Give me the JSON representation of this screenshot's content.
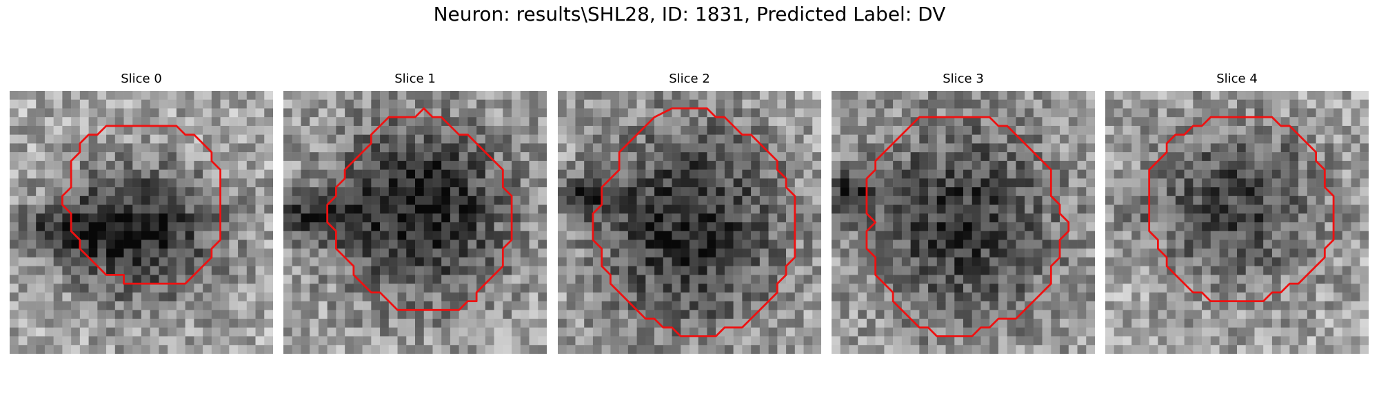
{
  "figure": {
    "title": "Neuron: results\\SHL28, ID: 1831, Predicted Label: DV"
  },
  "slices": [
    {
      "title": "Slice 0",
      "grid_size": 30,
      "seed": 11,
      "blob": {
        "cx": 14.5,
        "cy": 16.2,
        "rx": 9.8,
        "ry": 8.0,
        "darkness": 0.55
      },
      "shadow": {
        "cx": 5.0,
        "cy": 16.0,
        "rx": 5.0,
        "ry": 2.5,
        "darkness": 0.35
      },
      "contour": [
        [
          14,
          4
        ],
        [
          19,
          4
        ],
        [
          20,
          5
        ],
        [
          21,
          5
        ],
        [
          22,
          6
        ],
        [
          23,
          7
        ],
        [
          23,
          8
        ],
        [
          24,
          9
        ],
        [
          24,
          17
        ],
        [
          23,
          18
        ],
        [
          23,
          19
        ],
        [
          22,
          20
        ],
        [
          21,
          21
        ],
        [
          20,
          22
        ],
        [
          13,
          22
        ],
        [
          13,
          21
        ],
        [
          11,
          21
        ],
        [
          10,
          20
        ],
        [
          9,
          19
        ],
        [
          8,
          18
        ],
        [
          8,
          17
        ],
        [
          7,
          16
        ],
        [
          7,
          14
        ],
        [
          6,
          13
        ],
        [
          6,
          12
        ],
        [
          7,
          11
        ],
        [
          7,
          8
        ],
        [
          8,
          7
        ],
        [
          8,
          6
        ],
        [
          9,
          5
        ],
        [
          10,
          5
        ],
        [
          11,
          4
        ]
      ]
    },
    {
      "title": "Slice 1",
      "grid_size": 30,
      "seed": 23,
      "blob": {
        "cx": 15.5,
        "cy": 13.5,
        "rx": 11.2,
        "ry": 11.0,
        "darkness": 0.55
      },
      "shadow": {
        "cx": 3.0,
        "cy": 14.5,
        "rx": 4.0,
        "ry": 2.5,
        "darkness": 0.4
      },
      "contour": [
        [
          12,
          3
        ],
        [
          15,
          3
        ],
        [
          16,
          2
        ],
        [
          17,
          3
        ],
        [
          18,
          3
        ],
        [
          19,
          4
        ],
        [
          20,
          5
        ],
        [
          21,
          5
        ],
        [
          22,
          6
        ],
        [
          23,
          7
        ],
        [
          24,
          8
        ],
        [
          25,
          9
        ],
        [
          25,
          11
        ],
        [
          26,
          12
        ],
        [
          26,
          17
        ],
        [
          25,
          18
        ],
        [
          25,
          20
        ],
        [
          24,
          21
        ],
        [
          23,
          22
        ],
        [
          22,
          23
        ],
        [
          22,
          24
        ],
        [
          21,
          24
        ],
        [
          20,
          25
        ],
        [
          13,
          25
        ],
        [
          12,
          24
        ],
        [
          11,
          23
        ],
        [
          10,
          23
        ],
        [
          9,
          22
        ],
        [
          8,
          21
        ],
        [
          8,
          20
        ],
        [
          7,
          19
        ],
        [
          6,
          18
        ],
        [
          6,
          16
        ],
        [
          5,
          15
        ],
        [
          5,
          13
        ],
        [
          6,
          12
        ],
        [
          6,
          11
        ],
        [
          7,
          10
        ],
        [
          7,
          9
        ],
        [
          8,
          8
        ],
        [
          9,
          7
        ],
        [
          10,
          6
        ],
        [
          10,
          5
        ],
        [
          11,
          4
        ]
      ]
    },
    {
      "title": "Slice 2",
      "grid_size": 30,
      "seed": 37,
      "blob": {
        "cx": 15.0,
        "cy": 15.5,
        "rx": 11.5,
        "ry": 13.0,
        "darkness": 0.5
      },
      "shadow": {
        "cx": 3.5,
        "cy": 12.0,
        "rx": 3.5,
        "ry": 2.5,
        "darkness": 0.4
      },
      "contour": [
        [
          13,
          2
        ],
        [
          17,
          2
        ],
        [
          18,
          3
        ],
        [
          19,
          3
        ],
        [
          20,
          4
        ],
        [
          21,
          5
        ],
        [
          22,
          5
        ],
        [
          23,
          6
        ],
        [
          24,
          7
        ],
        [
          25,
          8
        ],
        [
          25,
          9
        ],
        [
          26,
          10
        ],
        [
          26,
          11
        ],
        [
          27,
          12
        ],
        [
          27,
          19
        ],
        [
          26,
          20
        ],
        [
          26,
          21
        ],
        [
          25,
          22
        ],
        [
          25,
          23
        ],
        [
          24,
          24
        ],
        [
          23,
          25
        ],
        [
          22,
          26
        ],
        [
          21,
          27
        ],
        [
          19,
          27
        ],
        [
          18,
          28
        ],
        [
          14,
          28
        ],
        [
          13,
          27
        ],
        [
          12,
          27
        ],
        [
          11,
          26
        ],
        [
          10,
          26
        ],
        [
          9,
          25
        ],
        [
          8,
          24
        ],
        [
          7,
          23
        ],
        [
          6,
          22
        ],
        [
          6,
          21
        ],
        [
          5,
          20
        ],
        [
          5,
          18
        ],
        [
          4,
          17
        ],
        [
          4,
          14
        ],
        [
          5,
          13
        ],
        [
          5,
          11
        ],
        [
          6,
          10
        ],
        [
          7,
          9
        ],
        [
          7,
          7
        ],
        [
          8,
          6
        ],
        [
          9,
          5
        ],
        [
          10,
          4
        ],
        [
          11,
          3
        ]
      ]
    },
    {
      "title": "Slice 3",
      "grid_size": 30,
      "seed": 53,
      "blob": {
        "cx": 15.0,
        "cy": 15.0,
        "rx": 12.0,
        "ry": 13.0,
        "darkness": 0.45
      },
      "shadow": {
        "cx": 2.0,
        "cy": 12.0,
        "rx": 3.0,
        "ry": 2.5,
        "darkness": 0.45
      },
      "contour": [
        [
          10,
          3
        ],
        [
          18,
          3
        ],
        [
          19,
          4
        ],
        [
          20,
          4
        ],
        [
          21,
          5
        ],
        [
          22,
          6
        ],
        [
          23,
          7
        ],
        [
          24,
          8
        ],
        [
          25,
          9
        ],
        [
          25,
          12
        ],
        [
          26,
          13
        ],
        [
          26,
          14
        ],
        [
          27,
          15
        ],
        [
          27,
          16
        ],
        [
          26,
          17
        ],
        [
          26,
          19
        ],
        [
          25,
          20
        ],
        [
          25,
          22
        ],
        [
          24,
          23
        ],
        [
          23,
          24
        ],
        [
          22,
          25
        ],
        [
          21,
          26
        ],
        [
          19,
          26
        ],
        [
          18,
          27
        ],
        [
          17,
          27
        ],
        [
          16,
          28
        ],
        [
          12,
          28
        ],
        [
          11,
          27
        ],
        [
          10,
          27
        ],
        [
          9,
          26
        ],
        [
          8,
          25
        ],
        [
          7,
          24
        ],
        [
          7,
          23
        ],
        [
          6,
          22
        ],
        [
          5,
          21
        ],
        [
          5,
          19
        ],
        [
          4,
          18
        ],
        [
          4,
          16
        ],
        [
          5,
          15
        ],
        [
          4,
          14
        ],
        [
          4,
          10
        ],
        [
          5,
          9
        ],
        [
          5,
          8
        ],
        [
          6,
          7
        ],
        [
          7,
          6
        ],
        [
          8,
          5
        ],
        [
          9,
          4
        ]
      ]
    },
    {
      "title": "Slice 4",
      "grid_size": 30,
      "seed": 71,
      "blob": {
        "cx": 15.0,
        "cy": 13.0,
        "rx": 10.5,
        "ry": 10.0,
        "darkness": 0.4
      },
      "shadow": {
        "cx": 4.0,
        "cy": 13.0,
        "rx": 2.5,
        "ry": 2.0,
        "darkness": 0.2
      },
      "contour": [
        [
          12,
          3
        ],
        [
          19,
          3
        ],
        [
          20,
          4
        ],
        [
          21,
          4
        ],
        [
          22,
          5
        ],
        [
          23,
          6
        ],
        [
          24,
          7
        ],
        [
          24,
          8
        ],
        [
          25,
          9
        ],
        [
          25,
          11
        ],
        [
          26,
          12
        ],
        [
          26,
          17
        ],
        [
          25,
          18
        ],
        [
          25,
          19
        ],
        [
          24,
          20
        ],
        [
          23,
          21
        ],
        [
          22,
          22
        ],
        [
          21,
          22
        ],
        [
          20,
          23
        ],
        [
          19,
          23
        ],
        [
          18,
          24
        ],
        [
          12,
          24
        ],
        [
          11,
          23
        ],
        [
          10,
          23
        ],
        [
          9,
          22
        ],
        [
          8,
          21
        ],
        [
          7,
          20
        ],
        [
          7,
          19
        ],
        [
          6,
          18
        ],
        [
          6,
          17
        ],
        [
          5,
          16
        ],
        [
          5,
          9
        ],
        [
          6,
          8
        ],
        [
          7,
          7
        ],
        [
          7,
          6
        ],
        [
          8,
          5
        ],
        [
          9,
          5
        ],
        [
          10,
          4
        ],
        [
          11,
          4
        ]
      ]
    }
  ],
  "colors": {
    "contour": "#ee1111",
    "background": "#ffffff"
  }
}
